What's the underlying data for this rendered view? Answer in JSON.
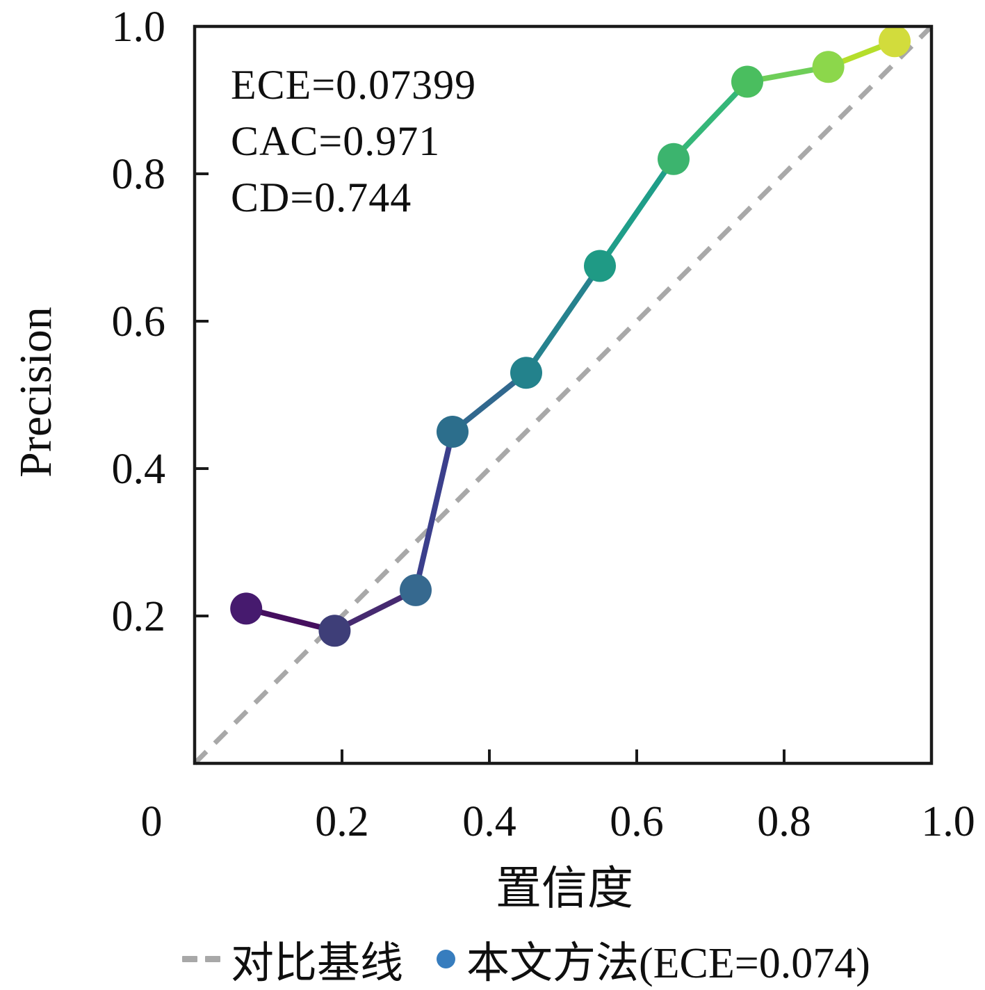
{
  "chart_data": {
    "type": "line",
    "title": "",
    "xlabel": "置信度",
    "ylabel": "Precision",
    "xlim": [
      0,
      1
    ],
    "ylim": [
      0,
      1
    ],
    "x_ticks": [
      0,
      0.2,
      0.4,
      0.6,
      0.8,
      1.0
    ],
    "x_tick_labels": [
      "0",
      "0.2",
      "0.4",
      "0.6",
      "0.8",
      "1.0"
    ],
    "y_ticks": [
      0.2,
      0.4,
      0.6,
      0.8,
      1.0
    ],
    "y_tick_labels": [
      "0.2",
      "0.4",
      "0.6",
      "0.8",
      "1.0"
    ],
    "grid": false,
    "legend_position": "bottom",
    "annotations": [
      "ECE=0.07399",
      "CAC=0.971",
      "CD=0.744"
    ],
    "axis_color": "#1a1a1a",
    "series": [
      {
        "name": "对比基线",
        "type": "line",
        "style": "dashed",
        "color": "#a8a8a8",
        "x": [
          0,
          1
        ],
        "y": [
          0,
          1
        ]
      },
      {
        "name": "本文方法(ECE=0.074)",
        "type": "line+markers",
        "colormap": "viridis",
        "legend_marker_color": "#377dbe",
        "x": [
          0.07,
          0.19,
          0.3,
          0.35,
          0.45,
          0.55,
          0.65,
          0.75,
          0.86,
          0.95
        ],
        "y": [
          0.21,
          0.18,
          0.235,
          0.45,
          0.53,
          0.675,
          0.82,
          0.925,
          0.945,
          0.98
        ],
        "marker_colors": [
          "#461a6e",
          "#3e3e78",
          "#36698f",
          "#2c6e8c",
          "#23828c",
          "#1f9a85",
          "#3cb46e",
          "#4abe5f",
          "#8cd74b",
          "#d2dc3c"
        ],
        "segment_colors": [
          "#450f5f",
          "#462a70",
          "#3b3f8c",
          "#31688e",
          "#26828e",
          "#1f9e89",
          "#35b779",
          "#6ece58",
          "#b5de2b"
        ]
      }
    ]
  }
}
